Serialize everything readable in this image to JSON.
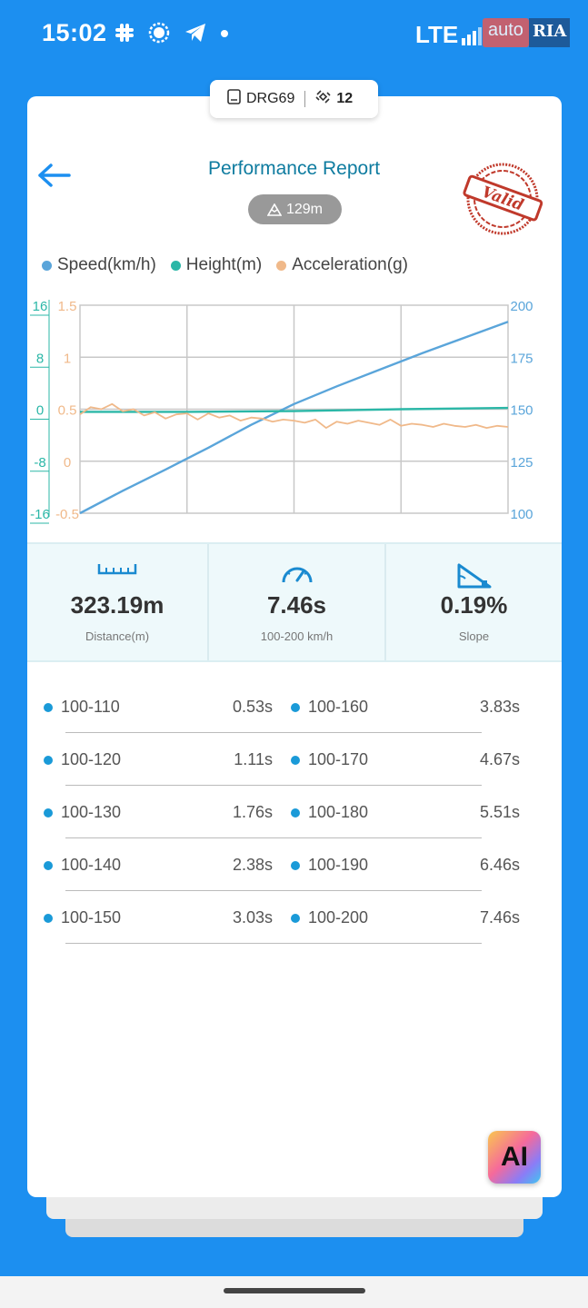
{
  "status": {
    "time": "15:02",
    "network": "LTE",
    "watermark_left": "auto",
    "watermark_right": "RIA",
    "icons": [
      "slack-icon",
      "signal-messenger-icon",
      "telegram-icon",
      "notification-dot-icon"
    ]
  },
  "device": {
    "name": "DRG69",
    "satellites": "12"
  },
  "header": {
    "title": "Performance Report",
    "height_badge": "129m",
    "stamp_text": "Valid"
  },
  "legend": [
    {
      "label": "Speed(km/h)",
      "color": "#5aa5da"
    },
    {
      "label": "Height(m)",
      "color": "#2bb7a7"
    },
    {
      "label": "Acceleration(g)",
      "color": "#f0b98a"
    }
  ],
  "chart_data": {
    "type": "line",
    "x_domain": [
      0,
      1
    ],
    "series": [
      {
        "name": "Speed(km/h)",
        "axis": "right",
        "color": "#5aa5da",
        "x": [
          0,
          0.1,
          0.2,
          0.3,
          0.4,
          0.5,
          0.6,
          0.7,
          0.8,
          0.9,
          1.0
        ],
        "y": [
          100,
          110.8,
          121.0,
          131.5,
          142.5,
          152.5,
          161.0,
          169.0,
          177.0,
          184.5,
          192.0
        ]
      },
      {
        "name": "Height(m)",
        "axis": "far-left",
        "color": "#2bb7a7",
        "x": [
          0,
          0.25,
          0.5,
          0.75,
          1.0
        ],
        "y": [
          -0.4,
          -0.4,
          -0.3,
          0.0,
          0.2
        ]
      },
      {
        "name": "Acceleration(g)",
        "axis": "left",
        "color": "#f0b98a",
        "x": [
          0,
          0.025,
          0.05,
          0.075,
          0.1,
          0.125,
          0.15,
          0.175,
          0.2,
          0.225,
          0.25,
          0.275,
          0.3,
          0.325,
          0.35,
          0.375,
          0.4,
          0.425,
          0.45,
          0.475,
          0.5,
          0.525,
          0.55,
          0.575,
          0.6,
          0.625,
          0.65,
          0.675,
          0.7,
          0.725,
          0.75,
          0.775,
          0.8,
          0.825,
          0.85,
          0.875,
          0.9,
          0.925,
          0.95,
          0.975,
          1.0
        ],
        "y": [
          0.45,
          0.52,
          0.5,
          0.55,
          0.48,
          0.5,
          0.44,
          0.47,
          0.41,
          0.45,
          0.46,
          0.4,
          0.46,
          0.42,
          0.44,
          0.39,
          0.42,
          0.41,
          0.38,
          0.4,
          0.39,
          0.37,
          0.4,
          0.32,
          0.38,
          0.36,
          0.39,
          0.37,
          0.35,
          0.4,
          0.34,
          0.36,
          0.35,
          0.33,
          0.36,
          0.34,
          0.33,
          0.35,
          0.32,
          0.34,
          0.33
        ]
      }
    ],
    "axes": {
      "far_left": {
        "ticks": [
          "16",
          "8",
          "0",
          "-8",
          "-16"
        ],
        "range": [
          -16,
          16
        ],
        "color": "#2bb7a7"
      },
      "left": {
        "ticks": [
          "1.5",
          "1",
          "0.5",
          "0",
          "-0.5"
        ],
        "range": [
          -0.5,
          1.5
        ],
        "color": "#f0b98a"
      },
      "right": {
        "ticks": [
          "200",
          "175",
          "150",
          "125",
          "100"
        ],
        "range": [
          100,
          200
        ],
        "color": "#5aa5da"
      }
    },
    "grid": true
  },
  "stats": [
    {
      "value": "323.19m",
      "label": "Distance(m)",
      "icon": "ruler-icon"
    },
    {
      "value": "7.46s",
      "label": "100-200 km/h",
      "icon": "speedometer-icon"
    },
    {
      "value": "0.19%",
      "label": "Slope",
      "icon": "slope-icon"
    }
  ],
  "splits_left": [
    {
      "range": "100-110",
      "time": "0.53s"
    },
    {
      "range": "100-120",
      "time": "1.11s"
    },
    {
      "range": "100-130",
      "time": "1.76s"
    },
    {
      "range": "100-140",
      "time": "2.38s"
    },
    {
      "range": "100-150",
      "time": "3.03s"
    }
  ],
  "splits_right": [
    {
      "range": "100-160",
      "time": "3.83s"
    },
    {
      "range": "100-170",
      "time": "4.67s"
    },
    {
      "range": "100-180",
      "time": "5.51s"
    },
    {
      "range": "100-190",
      "time": "6.46s"
    },
    {
      "range": "100-200",
      "time": "7.46s"
    }
  ],
  "ai_button": {
    "label": "AI"
  }
}
